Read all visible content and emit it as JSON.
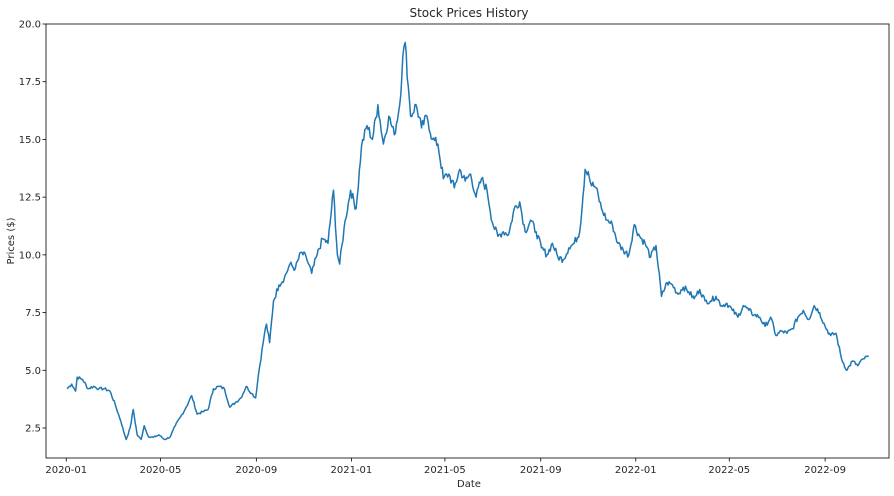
{
  "chart_data": {
    "type": "line",
    "title": "Stock Prices History",
    "xlabel": "Date",
    "ylabel": "Prices ($)",
    "xlim": [
      "2019-12-06",
      "2022-11-22"
    ],
    "ylim": [
      1.2,
      20.0
    ],
    "xticks": [
      {
        "date": "2020-01-01",
        "label": "2020-01"
      },
      {
        "date": "2020-05-01",
        "label": "2020-05"
      },
      {
        "date": "2020-09-01",
        "label": "2020-09"
      },
      {
        "date": "2021-01-01",
        "label": "2021-01"
      },
      {
        "date": "2021-05-01",
        "label": "2021-05"
      },
      {
        "date": "2021-09-01",
        "label": "2021-09"
      },
      {
        "date": "2022-01-01",
        "label": "2022-01"
      },
      {
        "date": "2022-05-01",
        "label": "2022-05"
      },
      {
        "date": "2022-09-01",
        "label": "2022-09"
      }
    ],
    "yticks": [
      2.5,
      5.0,
      7.5,
      10.0,
      12.5,
      15.0,
      17.5,
      20.0
    ],
    "grid": false,
    "legend": "none",
    "line_color": "#1f77b4",
    "series": [
      {
        "x": [
          "2020-01-02",
          "2020-01-08",
          "2020-01-13",
          "2020-01-15",
          "2020-01-22",
          "2020-01-29",
          "2020-02-05",
          "2020-02-12",
          "2020-02-19",
          "2020-02-26",
          "2020-03-04",
          "2020-03-11",
          "2020-03-16",
          "2020-03-18",
          "2020-03-23",
          "2020-03-27",
          "2020-04-01",
          "2020-04-06",
          "2020-04-10",
          "2020-04-16",
          "2020-04-22",
          "2020-04-29",
          "2020-05-06",
          "2020-05-13",
          "2020-05-20",
          "2020-05-27",
          "2020-06-03",
          "2020-06-10",
          "2020-06-17",
          "2020-06-24",
          "2020-07-01",
          "2020-07-08",
          "2020-07-15",
          "2020-07-22",
          "2020-07-29",
          "2020-08-05",
          "2020-08-12",
          "2020-08-19",
          "2020-08-26",
          "2020-08-31",
          "2020-09-04",
          "2020-09-11",
          "2020-09-14",
          "2020-09-18",
          "2020-09-23",
          "2020-09-30",
          "2020-10-07",
          "2020-10-14",
          "2020-10-21",
          "2020-10-28",
          "2020-11-04",
          "2020-11-11",
          "2020-11-18",
          "2020-11-25",
          "2020-12-02",
          "2020-12-09",
          "2020-12-14",
          "2020-12-17",
          "2020-12-24",
          "2020-12-31",
          "2021-01-07",
          "2021-01-14",
          "2021-01-21",
          "2021-01-28",
          "2021-02-04",
          "2021-02-11",
          "2021-02-18",
          "2021-02-25",
          "2021-03-04",
          "2021-03-08",
          "2021-03-11",
          "2021-03-15",
          "2021-03-18",
          "2021-03-25",
          "2021-04-01",
          "2021-04-08",
          "2021-04-15",
          "2021-04-22",
          "2021-04-29",
          "2021-05-06",
          "2021-05-13",
          "2021-05-20",
          "2021-05-27",
          "2021-06-03",
          "2021-06-10",
          "2021-06-17",
          "2021-06-24",
          "2021-07-01",
          "2021-07-08",
          "2021-07-15",
          "2021-07-22",
          "2021-07-29",
          "2021-08-05",
          "2021-08-12",
          "2021-08-19",
          "2021-08-26",
          "2021-09-02",
          "2021-09-09",
          "2021-09-16",
          "2021-09-23",
          "2021-09-30",
          "2021-10-07",
          "2021-10-14",
          "2021-10-21",
          "2021-10-28",
          "2021-11-01",
          "2021-11-04",
          "2021-11-11",
          "2021-11-18",
          "2021-11-25",
          "2021-12-02",
          "2021-12-09",
          "2021-12-16",
          "2021-12-23",
          "2021-12-30",
          "2022-01-06",
          "2022-01-13",
          "2022-01-20",
          "2022-01-27",
          "2022-02-03",
          "2022-02-10",
          "2022-02-17",
          "2022-02-24",
          "2022-03-03",
          "2022-03-10",
          "2022-03-17",
          "2022-03-24",
          "2022-03-31",
          "2022-04-07",
          "2022-04-14",
          "2022-04-21",
          "2022-04-28",
          "2022-05-05",
          "2022-05-12",
          "2022-05-19",
          "2022-05-26",
          "2022-06-02",
          "2022-06-09",
          "2022-06-16",
          "2022-06-23",
          "2022-06-30",
          "2022-07-07",
          "2022-07-14",
          "2022-07-21",
          "2022-07-28",
          "2022-08-04",
          "2022-08-11",
          "2022-08-18",
          "2022-08-25",
          "2022-09-01",
          "2022-09-08",
          "2022-09-15",
          "2022-09-22",
          "2022-09-29",
          "2022-10-06",
          "2022-10-13",
          "2022-10-20",
          "2022-10-27"
        ],
        "values": [
          4.2,
          4.4,
          4.1,
          4.7,
          4.6,
          4.2,
          4.3,
          4.2,
          4.2,
          4.1,
          3.5,
          2.8,
          2.2,
          2.0,
          2.5,
          3.3,
          2.2,
          2.0,
          2.6,
          2.1,
          2.1,
          2.2,
          2.0,
          2.1,
          2.6,
          3.0,
          3.4,
          3.9,
          3.1,
          3.2,
          3.3,
          4.2,
          4.3,
          4.2,
          3.4,
          3.6,
          3.8,
          4.3,
          4.0,
          3.8,
          4.9,
          6.5,
          7.0,
          6.2,
          8.0,
          8.7,
          9.0,
          9.6,
          9.4,
          10.1,
          9.9,
          9.2,
          10.0,
          10.7,
          10.5,
          12.8,
          10.0,
          9.6,
          11.5,
          12.8,
          12.0,
          14.7,
          15.6,
          15.0,
          16.5,
          14.8,
          16.0,
          15.2,
          16.5,
          18.6,
          19.2,
          17.3,
          16.0,
          16.5,
          15.5,
          16.0,
          15.0,
          14.8,
          13.3,
          13.5,
          12.9,
          13.7,
          13.2,
          13.5,
          12.5,
          13.3,
          12.8,
          11.4,
          10.8,
          11.0,
          10.9,
          12.0,
          12.3,
          11.0,
          11.5,
          11.0,
          10.3,
          10.0,
          10.5,
          9.9,
          9.8,
          10.3,
          10.5,
          11.0,
          13.7,
          13.6,
          13.1,
          12.9,
          12.0,
          11.5,
          11.3,
          10.5,
          10.2,
          10.0,
          11.3,
          10.8,
          10.5,
          9.9,
          10.4,
          8.2,
          8.8,
          8.7,
          8.3,
          8.6,
          8.4,
          8.1,
          8.5,
          8.0,
          8.0,
          8.2,
          7.8,
          7.9,
          7.6,
          7.3,
          7.8,
          7.6,
          7.4,
          7.3,
          6.9,
          7.3,
          6.5,
          6.7,
          6.6,
          6.8,
          7.3,
          7.6,
          7.2,
          7.8,
          7.5,
          6.9,
          6.5,
          6.6,
          5.5,
          5.0,
          5.4,
          5.2,
          5.5,
          5.6
        ]
      }
    ]
  }
}
